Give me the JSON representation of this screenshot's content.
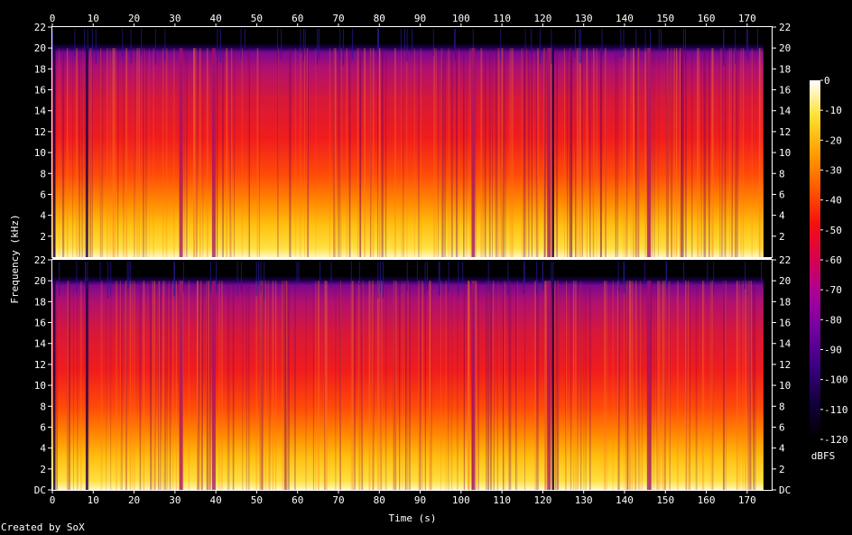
{
  "credit": "Created by SoX",
  "chart_data": {
    "type": "heatmap",
    "title": "",
    "xlabel": "Time (s)",
    "ylabel": "Frequency (kHz)",
    "xlim": [
      0,
      176
    ],
    "ylim": [
      0,
      22
    ],
    "x_ticks": [
      "0",
      "10",
      "20",
      "30",
      "40",
      "50",
      "60",
      "70",
      "80",
      "90",
      "100",
      "110",
      "120",
      "130",
      "140",
      "150",
      "160",
      "170"
    ],
    "y_ticks_top": [
      "2",
      "4",
      "6",
      "8",
      "10",
      "12",
      "14",
      "16",
      "18",
      "20",
      "22"
    ],
    "y_ticks_bottom": [
      "DC",
      "2",
      "4",
      "6",
      "8",
      "10",
      "12",
      "14",
      "16",
      "18",
      "20",
      "22"
    ],
    "channels": 2,
    "colorbar": {
      "label": "dBFS",
      "range": [
        -120,
        0
      ],
      "ticks": [
        "0",
        "-10",
        "-20",
        "-30",
        "-40",
        "-50",
        "-60",
        "-70",
        "-80",
        "-90",
        "-100",
        "-110",
        "-120"
      ],
      "colors": [
        "#000000",
        "#22005a",
        "#5a009a",
        "#9a00a0",
        "#d00060",
        "#f01010",
        "#ff5000",
        "#ff9a00",
        "#ffd400",
        "#ffff60",
        "#ffffff"
      ]
    },
    "signal": {
      "duration_s": 174,
      "bandwidth_khz": 20,
      "dip_times_s": [
        31.5,
        39.5,
        103,
        121.5,
        146
      ],
      "silence_times_s": [
        0,
        8,
        122
      ]
    }
  }
}
